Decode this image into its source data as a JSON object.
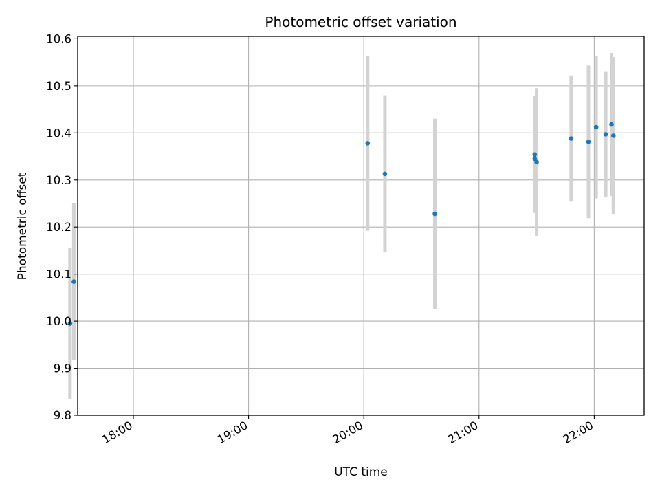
{
  "chart_data": {
    "type": "scatter",
    "title": "Photometric offset variation",
    "xlabel": "UTC time",
    "ylabel": "Photometric offset",
    "xlim": [
      "17:31",
      "22:26"
    ],
    "ylim": [
      9.8,
      10.605
    ],
    "grid": true,
    "xticks": [
      "18:00",
      "19:00",
      "20:00",
      "21:00",
      "22:00"
    ],
    "yticks": [
      "9.8",
      "9.9",
      "10.0",
      "10.1",
      "10.2",
      "10.3",
      "10.4",
      "10.5",
      "10.6"
    ],
    "colors": {
      "point": "#1f77b4",
      "errorbar": "#d3d3d3",
      "grid": "#b0b0b0"
    },
    "points": [
      {
        "x": "17:27",
        "y": 9.995,
        "yerr": 0.16
      },
      {
        "x": "17:29",
        "y": 10.084,
        "yerr": 0.167
      },
      {
        "x": "20:02",
        "y": 10.378,
        "yerr": 0.186
      },
      {
        "x": "20:11",
        "y": 10.313,
        "yerr": 0.167
      },
      {
        "x": "20:37",
        "y": 10.228,
        "yerr": 0.202
      },
      {
        "x": "21:29",
        "y": 10.354,
        "yerr": 0.124
      },
      {
        "x": "21:29",
        "y": 10.345,
        "yerr": 0.115
      },
      {
        "x": "21:30",
        "y": 10.338,
        "yerr": 0.157
      },
      {
        "x": "21:48",
        "y": 10.388,
        "yerr": 0.134
      },
      {
        "x": "21:57",
        "y": 10.381,
        "yerr": 0.162
      },
      {
        "x": "22:01",
        "y": 10.412,
        "yerr": 0.151
      },
      {
        "x": "22:06",
        "y": 10.397,
        "yerr": 0.134
      },
      {
        "x": "22:09",
        "y": 10.418,
        "yerr": 0.152
      },
      {
        "x": "22:10",
        "y": 10.394,
        "yerr": 0.167
      }
    ]
  }
}
